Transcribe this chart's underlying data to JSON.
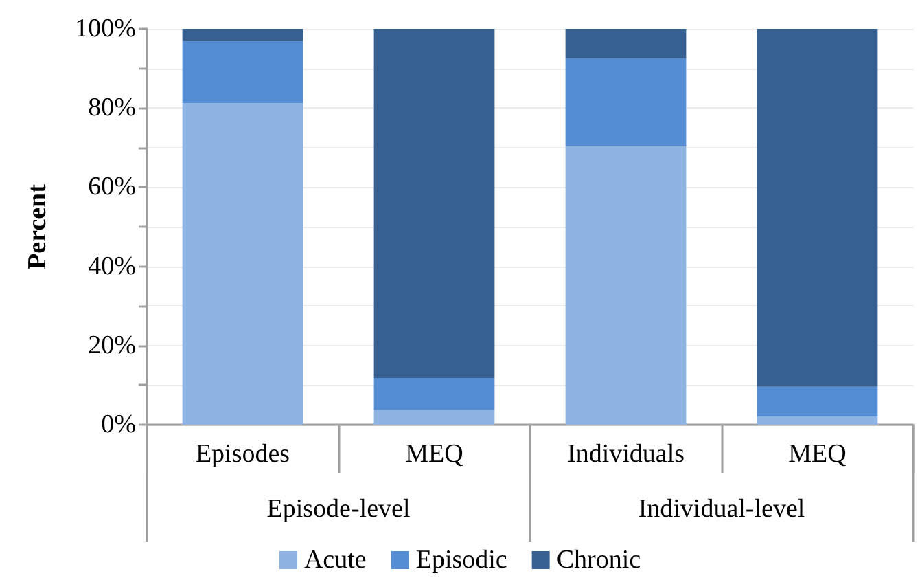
{
  "chart_data": {
    "type": "bar",
    "stacked": true,
    "ylabel": "Percent",
    "categories": [
      "Episodes",
      "MEQ",
      "Individuals",
      "MEQ"
    ],
    "series": [
      {
        "name": "Acute",
        "color": "#8eb3e2",
        "values": [
          81.2,
          3.7,
          70.5,
          2.0
        ]
      },
      {
        "name": "Episodic",
        "color": "#548dd4",
        "values": [
          15.7,
          8.1,
          22.1,
          7.6
        ]
      },
      {
        "name": "Chronic",
        "color": "#366092",
        "values": [
          3.1,
          88.2,
          7.4,
          90.4
        ]
      }
    ],
    "annotations": [
      "Episode-level",
      "Individual-level"
    ],
    "ylim": [
      0,
      100
    ],
    "yticks": [
      {
        "value": 0,
        "label": "0%"
      },
      {
        "value": 10,
        "label": null
      },
      {
        "value": 20,
        "label": "20%"
      },
      {
        "value": 30,
        "label": null
      },
      {
        "value": 40,
        "label": "40%"
      },
      {
        "value": 50,
        "label": null
      },
      {
        "value": 60,
        "label": "60%"
      },
      {
        "value": 70,
        "label": null
      },
      {
        "value": 80,
        "label": "80%"
      },
      {
        "value": 90,
        "label": null
      },
      {
        "value": 100,
        "label": "100%"
      }
    ],
    "grid": "y",
    "legend": "bottom"
  }
}
